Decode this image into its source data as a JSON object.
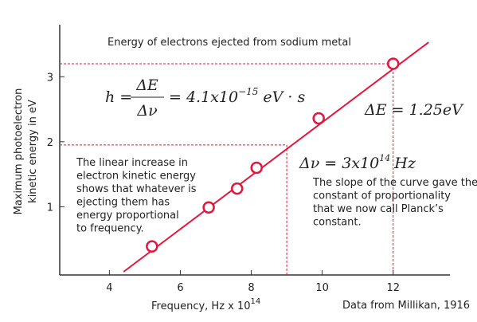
{
  "chart_data": {
    "type": "scatter",
    "title": "Energy of electrons ejected from sodium metal",
    "y_label_lines": [
      "Maximum photoelectron",
      "kinetic energy in eV"
    ],
    "x_label": "Frequency, Hz  x 10",
    "x_label_exponent": "14",
    "source": "Data from Millikan, 1916",
    "x": [
      5.2,
      6.8,
      7.6,
      8.15,
      9.9,
      12.0
    ],
    "values": [
      0.39,
      0.99,
      1.28,
      1.6,
      2.36,
      3.2
    ],
    "color": "#e3173d",
    "fit": {
      "x": [
        4.4,
        13.0
      ],
      "y": [
        0,
        3.53
      ]
    },
    "guides": [
      {
        "x": 9,
        "y": 1.95
      },
      {
        "x": 12,
        "y": 3.2
      }
    ],
    "xlim": [
      2.6,
      13.6
    ],
    "ylim": [
      0,
      3.8
    ],
    "xticks": [
      4,
      6,
      8,
      10,
      12
    ],
    "yticks": [
      1,
      2,
      3
    ],
    "equation": {
      "lhs": "h =",
      "numerator": "ΔE",
      "denominator": "Δν",
      "rhs": "= 4.1x10",
      "exponent": "−15",
      "units": "eV · s"
    },
    "delta_e": "ΔE = 1.25eV",
    "delta_nu": {
      "text": "Δν = 3x10",
      "exponent": "14",
      "units": "Hz"
    },
    "note_left": [
      "The linear increase in",
      "electron kinetic energy",
      "shows that whatever is",
      "ejecting them has",
      "energy proportional",
      "to frequency."
    ],
    "note_right": [
      "The slope of the curve gave the",
      "constant of proportionality",
      "that we now call Planck’s",
      "constant."
    ]
  }
}
